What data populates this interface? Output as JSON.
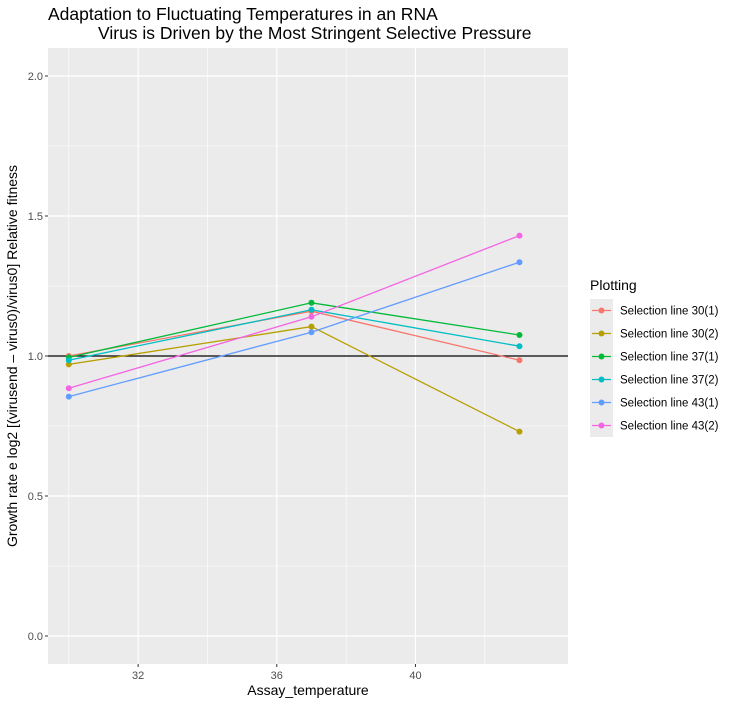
{
  "chart_data": {
    "type": "line",
    "title_lines": [
      "Adaptation to Fluctuating Temperatures in an RNA",
      "Virus is Driven by the Most Stringent Selective Pressure"
    ],
    "xlabel": "Assay_temperature",
    "ylabel": "Growth rate e log2 [(virusend – virus0)/virus0]  Relative fitness",
    "x_ticks": [
      32,
      36,
      40
    ],
    "y_ticks": [
      0.0,
      0.5,
      1.0,
      1.5,
      2.0
    ],
    "y_tick_labels": [
      "0.0",
      "0.5",
      "1.0",
      "1.5",
      "2.0"
    ],
    "xlim": [
      29.4,
      44.4
    ],
    "ylim": [
      -0.1,
      2.1
    ],
    "grid": true,
    "reference_line": 1.0,
    "legend": {
      "title": "Plotting",
      "position": "right"
    },
    "x": [
      30,
      37,
      43
    ],
    "series": [
      {
        "name": "Selection line 30(1)",
        "color": "#F8766D",
        "values": [
          1.0,
          1.16,
          0.985
        ]
      },
      {
        "name": "Selection line 30(2)",
        "color": "#B79F00",
        "values": [
          0.97,
          1.105,
          0.73
        ]
      },
      {
        "name": "Selection line 37(1)",
        "color": "#00BA38",
        "values": [
          0.995,
          1.19,
          1.075
        ]
      },
      {
        "name": "Selection line 37(2)",
        "color": "#00BFC4",
        "values": [
          0.985,
          1.165,
          1.035
        ]
      },
      {
        "name": "Selection line 43(1)",
        "color": "#619CFF",
        "values": [
          0.855,
          1.085,
          1.335
        ]
      },
      {
        "name": "Selection line 43(2)",
        "color": "#F564E3",
        "values": [
          0.885,
          1.14,
          1.43
        ]
      }
    ]
  }
}
